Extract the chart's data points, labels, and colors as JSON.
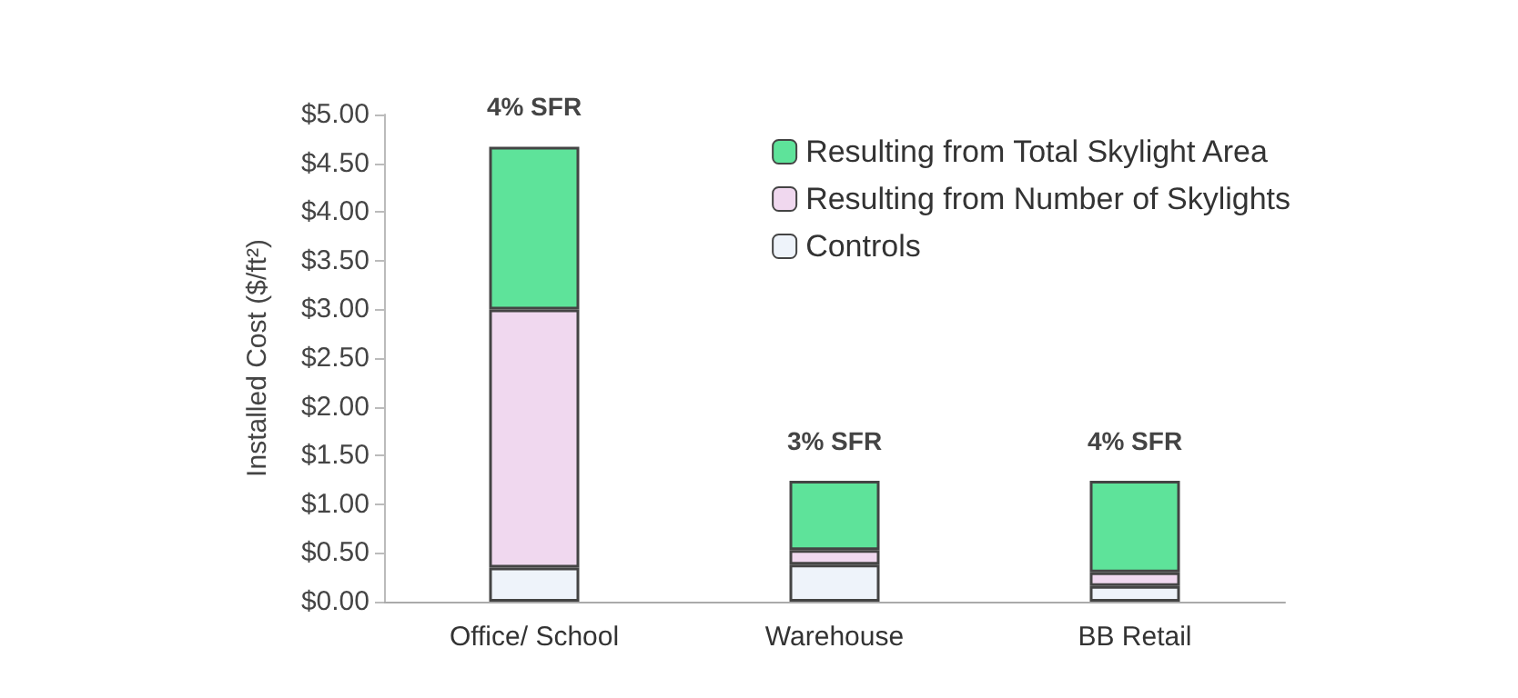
{
  "chart_data": {
    "type": "bar",
    "stacked": true,
    "ylabel": "Installed Cost ($/ft²)",
    "categories": [
      "Office/ School",
      "Warehouse",
      "BB Retail"
    ],
    "series": [
      {
        "name": "Controls",
        "color": "#eef3fa",
        "values": [
          0.35,
          0.38,
          0.16
        ]
      },
      {
        "name": "Resulting from Number of Skylights",
        "color": "#f0d8ef",
        "values": [
          2.65,
          0.15,
          0.14
        ]
      },
      {
        "name": "Resulting from Total Skylight Area",
        "color": "#5ee39a",
        "values": [
          1.67,
          0.71,
          0.94
        ]
      }
    ],
    "ylim": [
      0,
      5
    ],
    "yticks": [
      {
        "value": 0,
        "label": "$0.00"
      },
      {
        "value": 0.5,
        "label": "$0.50"
      },
      {
        "value": 1,
        "label": "$1.00"
      },
      {
        "value": 1.5,
        "label": "$1.50"
      },
      {
        "value": 2,
        "label": "$2.00"
      },
      {
        "value": 2.5,
        "label": "$2.50"
      },
      {
        "value": 3,
        "label": "$3.00"
      },
      {
        "value": 3.5,
        "label": "$3.50"
      },
      {
        "value": 4,
        "label": "$4.00"
      },
      {
        "value": 4.5,
        "label": "$4.50"
      },
      {
        "value": 5,
        "label": "$5.00"
      }
    ],
    "annotations": [
      "4% SFR",
      "3% SFR",
      "4% SFR"
    ],
    "legend": "top right"
  }
}
